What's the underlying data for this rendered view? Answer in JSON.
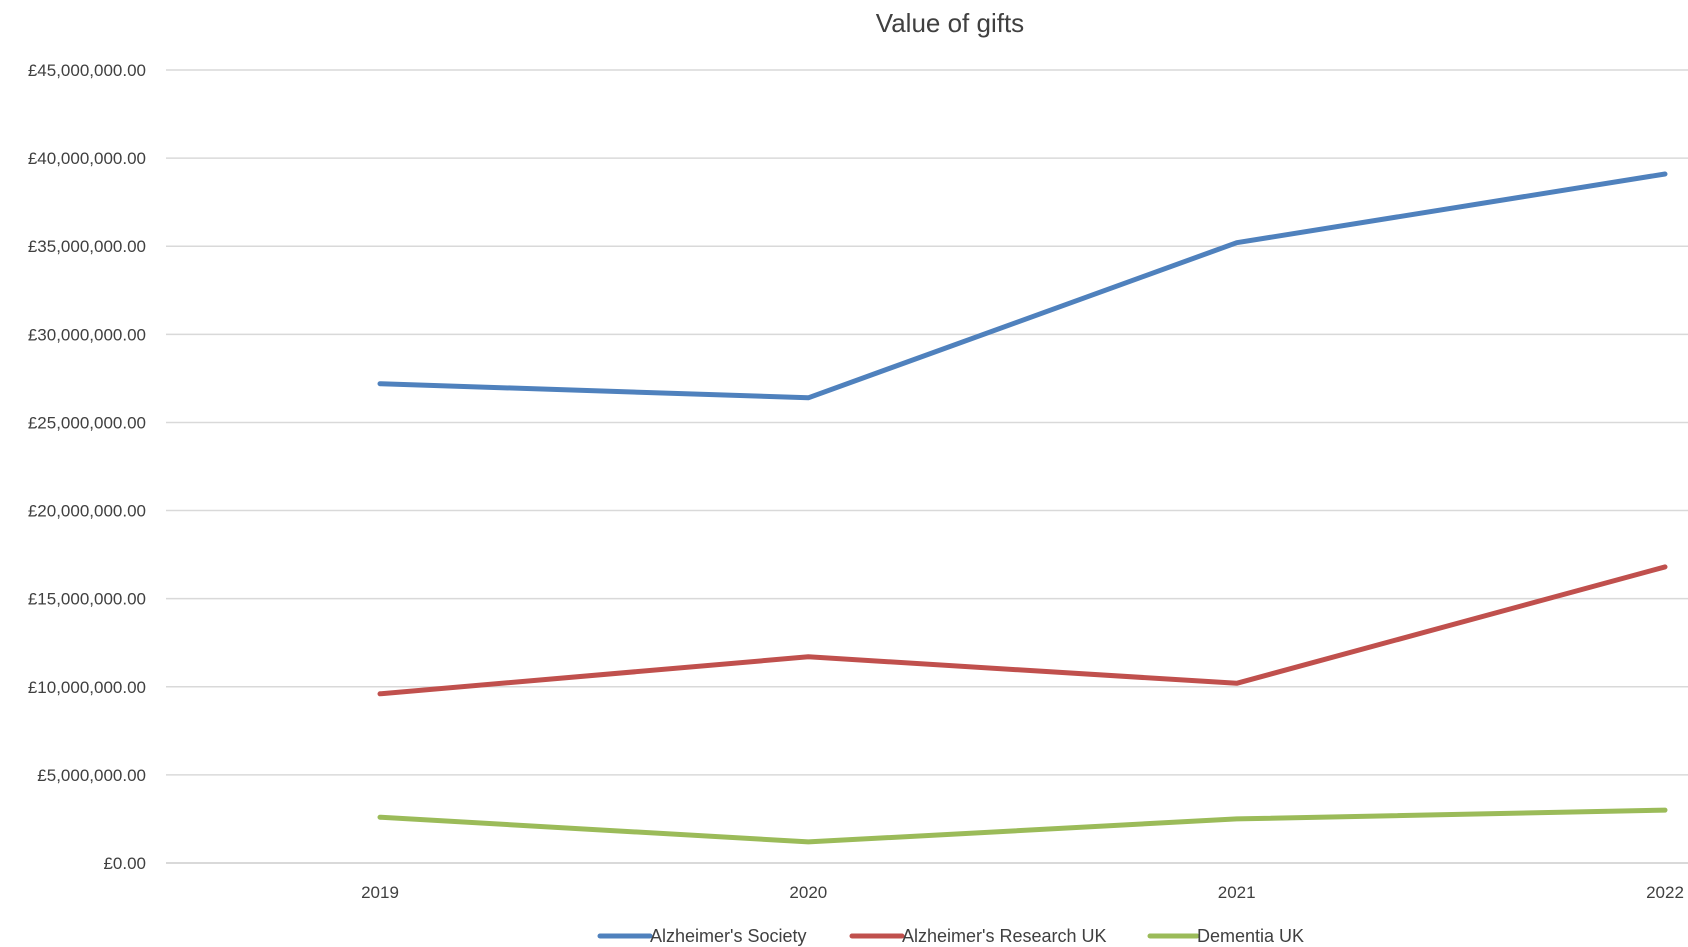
{
  "chart_data": {
    "type": "line",
    "title": "Value of gifts",
    "xlabel": "",
    "ylabel": "",
    "categories": [
      "2019",
      "2020",
      "2021",
      "2022"
    ],
    "ylim": [
      0,
      45000000
    ],
    "ytick_step": 5000000,
    "ytick_labels": [
      "£0.00",
      "£5,000,000.00",
      "£10,000,000.00",
      "£15,000,000.00",
      "£20,000,000.00",
      "£25,000,000.00",
      "£30,000,000.00",
      "£35,000,000.00",
      "£40,000,000.00",
      "£45,000,000.00"
    ],
    "grid": true,
    "legend_position": "bottom",
    "series": [
      {
        "name": "Alzheimer's Society",
        "color": "#4f81bd",
        "values": [
          27200000,
          26400000,
          35200000,
          39100000
        ]
      },
      {
        "name": "Alzheimer's Research UK",
        "color": "#c0504d",
        "values": [
          9600000,
          11700000,
          10200000,
          16800000
        ]
      },
      {
        "name": "Dementia UK",
        "color": "#9bbb59",
        "values": [
          2600000,
          1200000,
          2500000,
          3000000
        ]
      }
    ]
  }
}
